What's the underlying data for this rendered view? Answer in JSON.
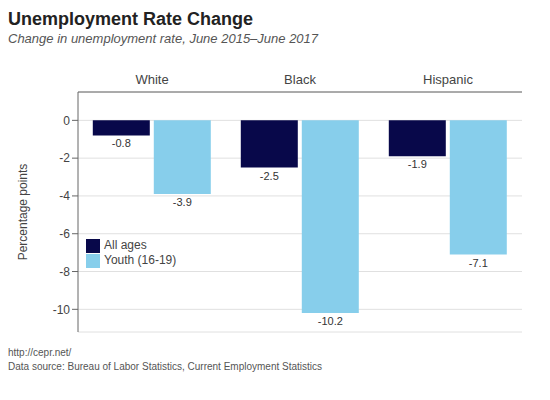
{
  "chart_data": {
    "type": "bar",
    "title": "Unemployment Rate Change",
    "subtitle": "Change in unemployment rate, June 2015–June 2017",
    "categories": [
      "White",
      "Black",
      "Hispanic"
    ],
    "series": [
      {
        "name": "All ages",
        "color": "#08084a",
        "values": [
          -0.8,
          -2.5,
          -1.9
        ]
      },
      {
        "name": "Youth (16-19)",
        "color": "#87CEEB",
        "values": [
          -3.9,
          -10.2,
          -7.1
        ]
      }
    ],
    "ylabel": "Percentage points",
    "ylim": [
      -11.2,
      1.5
    ],
    "yticks": [
      0,
      -2,
      -4,
      -6,
      -8,
      -10
    ],
    "grid": true,
    "legend": "lower left",
    "data_labels": true,
    "annotations": [
      "http://cepr.net/",
      "Data source: Bureau of Labor Statistics, Current Employment Statistics"
    ]
  }
}
